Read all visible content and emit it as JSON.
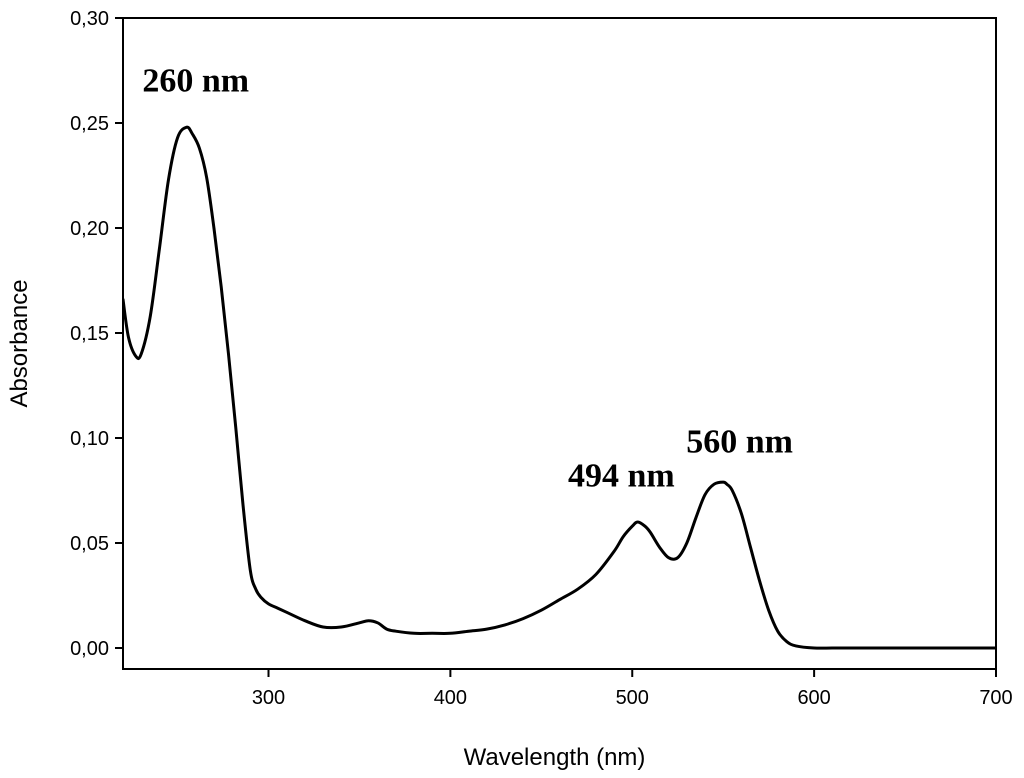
{
  "chart_data": {
    "type": "line",
    "title": "",
    "xlabel": "Wavelength (nm)",
    "ylabel": "Absorbance",
    "xlim": [
      220,
      700
    ],
    "ylim": [
      -0.01,
      0.3
    ],
    "x_ticks": [
      300,
      400,
      500,
      600,
      700
    ],
    "x_tick_labels": [
      "300",
      "400",
      "500",
      "600",
      "700"
    ],
    "y_ticks": [
      0.0,
      0.05,
      0.1,
      0.15,
      0.2,
      0.25,
      0.3
    ],
    "y_tick_labels": [
      "0,00",
      "0,05",
      "0,10",
      "0,15",
      "0,20",
      "0,25",
      "0,30"
    ],
    "grid": false,
    "legend": "none",
    "line_color": "#000000",
    "series": [
      {
        "x": [
          220,
          223,
          227,
          230,
          235,
          240,
          245,
          250,
          255,
          258,
          262,
          266,
          270,
          274,
          278,
          282,
          286,
          290,
          293,
          296,
          300,
          305,
          310,
          320,
          330,
          340,
          350,
          355,
          360,
          365,
          370,
          380,
          390,
          400,
          410,
          420,
          430,
          440,
          450,
          460,
          470,
          480,
          490,
          495,
          500,
          503,
          507,
          510,
          515,
          520,
          525,
          530,
          535,
          540,
          545,
          550,
          552,
          555,
          560,
          565,
          570,
          575,
          580,
          585,
          590,
          600,
          610,
          620,
          640,
          660,
          680,
          700
        ],
        "y": [
          0.166,
          0.148,
          0.139,
          0.14,
          0.158,
          0.19,
          0.223,
          0.243,
          0.248,
          0.245,
          0.238,
          0.224,
          0.2,
          0.172,
          0.14,
          0.105,
          0.068,
          0.037,
          0.028,
          0.024,
          0.021,
          0.019,
          0.017,
          0.013,
          0.01,
          0.01,
          0.012,
          0.013,
          0.012,
          0.009,
          0.008,
          0.007,
          0.007,
          0.007,
          0.008,
          0.009,
          0.011,
          0.014,
          0.018,
          0.023,
          0.028,
          0.035,
          0.046,
          0.053,
          0.058,
          0.06,
          0.058,
          0.055,
          0.048,
          0.043,
          0.043,
          0.05,
          0.062,
          0.073,
          0.078,
          0.079,
          0.078,
          0.075,
          0.064,
          0.048,
          0.032,
          0.018,
          0.008,
          0.003,
          0.001,
          0.0,
          0.0,
          0.0,
          0.0,
          0.0,
          0.0,
          0.0
        ]
      }
    ],
    "annotations": [
      {
        "text": "260 nm",
        "x": 260,
        "y": 0.265
      },
      {
        "text": "494 nm",
        "x": 494,
        "y": 0.077
      },
      {
        "text": "560 nm",
        "x": 559,
        "y": 0.093
      }
    ]
  }
}
